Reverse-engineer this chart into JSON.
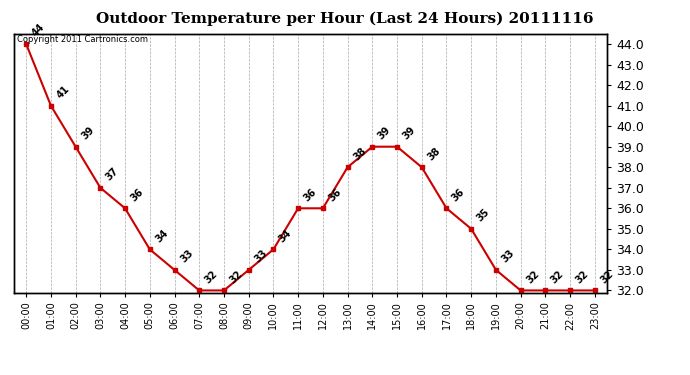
{
  "title": "Outdoor Temperature per Hour (Last 24 Hours) 20111116",
  "copyright_text": "Copyright 2011 Cartronics.com",
  "hours": [
    "00:00",
    "01:00",
    "02:00",
    "03:00",
    "04:00",
    "05:00",
    "06:00",
    "07:00",
    "08:00",
    "09:00",
    "10:00",
    "11:00",
    "12:00",
    "13:00",
    "14:00",
    "15:00",
    "16:00",
    "17:00",
    "18:00",
    "19:00",
    "20:00",
    "21:00",
    "22:00",
    "23:00"
  ],
  "temperatures": [
    44,
    41,
    39,
    37,
    36,
    34,
    33,
    32,
    32,
    33,
    34,
    36,
    36,
    38,
    39,
    39,
    38,
    36,
    35,
    33,
    32,
    32,
    32,
    32
  ],
  "ylim_min": 32.0,
  "ylim_max": 44.0,
  "line_color": "#cc0000",
  "marker_color": "#cc0000",
  "background_color": "#ffffff",
  "grid_color": "#aaaaaa",
  "title_fontsize": 11,
  "label_fontsize": 7,
  "tick_fontsize": 7,
  "axis_tick_fontsize": 9
}
